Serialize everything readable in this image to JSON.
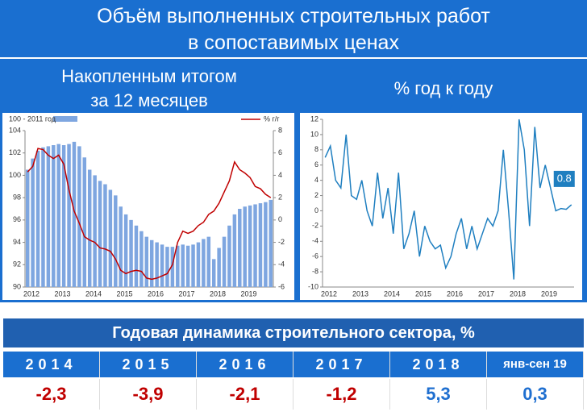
{
  "title": [
    "Объём выполненных строительных работ",
    "в сопоставимых ценах"
  ],
  "subtitles": {
    "left": [
      "Накопленным итогом",
      "за 12 месяцев"
    ],
    "right": "% год к году"
  },
  "chart_data": [
    {
      "type": "bar",
      "categories": [
        "2012",
        null,
        null,
        null,
        null,
        null,
        "2013",
        null,
        null,
        null,
        null,
        null,
        "2014",
        null,
        null,
        null,
        null,
        null,
        "2015",
        null,
        null,
        null,
        null,
        null,
        "2016",
        null,
        null,
        null,
        null,
        null,
        "2017",
        null,
        null,
        null,
        null,
        null,
        "2018",
        null,
        null,
        null,
        null,
        null,
        "2019",
        null,
        null,
        null,
        null,
        null
      ],
      "series": [
        {
          "name": "100 - 2011 год",
          "type": "bar",
          "color": "#7ea6e0",
          "values": [
            100.5,
            101.5,
            102.2,
            102.5,
            102.6,
            102.7,
            102.8,
            102.7,
            102.8,
            103,
            102.6,
            101.6,
            100.5,
            100,
            99.5,
            99.2,
            98.7,
            98.2,
            97.2,
            96.5,
            96,
            95.5,
            95,
            94.5,
            94.2,
            94,
            93.8,
            93.6,
            93.6,
            93.7,
            93.8,
            93.7,
            93.8,
            94,
            94.3,
            94.5,
            92.5,
            93.5,
            94.5,
            95.5,
            96.5,
            97,
            97.2,
            97.3,
            97.4,
            97.5,
            97.6,
            97.8
          ]
        },
        {
          "name": "% г/г",
          "type": "line",
          "color": "#c00000",
          "axis": "y2",
          "values": [
            4.3,
            4.8,
            6.4,
            6.3,
            5.8,
            5.5,
            5.8,
            5,
            2.7,
            0.8,
            -0.3,
            -1.5,
            -1.8,
            -2,
            -2.5,
            -2.6,
            -2.8,
            -3.5,
            -4.5,
            -4.8,
            -4.6,
            -4.5,
            -4.6,
            -5.2,
            -5.3,
            -5.2,
            -5,
            -4.8,
            -4,
            -2,
            -1,
            -1.2,
            -1,
            -0.5,
            -0.2,
            0.5,
            0.8,
            1.5,
            2.5,
            3.5,
            5.2,
            4.5,
            4.2,
            3.8,
            3,
            2.8,
            2.3,
            2
          ]
        }
      ],
      "ylim": [
        90,
        104
      ],
      "yticks": [
        90,
        92,
        94,
        96,
        98,
        100,
        102,
        104
      ],
      "y2lim": [
        -6,
        8
      ],
      "y2ticks": [
        -6,
        -4,
        -2,
        0,
        2,
        4,
        6,
        8
      ]
    },
    {
      "type": "line",
      "color": "#1f7fc0",
      "categories": [
        "2012",
        null,
        null,
        null,
        null,
        null,
        "2013",
        null,
        null,
        null,
        null,
        null,
        "2014",
        null,
        null,
        null,
        null,
        null,
        "2015",
        null,
        null,
        null,
        null,
        null,
        "2016",
        null,
        null,
        null,
        null,
        null,
        "2017",
        null,
        null,
        null,
        null,
        null,
        "2018",
        null,
        null,
        null,
        null,
        null,
        "2019",
        null,
        null,
        null,
        null,
        null
      ],
      "values": [
        7,
        8.5,
        4,
        3,
        10,
        2,
        1.5,
        4,
        0,
        -2,
        5,
        -1,
        3,
        -3,
        5,
        -5,
        -3,
        0,
        -6,
        -2,
        -4,
        -5,
        -4.5,
        -7.5,
        -6,
        -3,
        -1,
        -5,
        -2,
        -5,
        -3,
        -1,
        -2,
        0,
        8,
        0,
        -9,
        12,
        8,
        -2,
        11,
        3,
        6,
        3,
        0,
        0.3,
        0.2,
        0.8
      ],
      "ylim": [
        -10,
        12
      ],
      "yticks": [
        -10,
        -8,
        -6,
        -4,
        -2,
        0,
        2,
        4,
        6,
        8,
        10,
        12
      ]
    }
  ],
  "table": {
    "title": "Годовая динамика строительного сектора, %",
    "header": [
      "2014",
      "2015",
      "2016",
      "2017",
      "2018",
      "янв-сен 19"
    ],
    "values": [
      "-2,3",
      "-3,9",
      "-2,1",
      "-1,2",
      "5,3",
      "0,3"
    ]
  }
}
